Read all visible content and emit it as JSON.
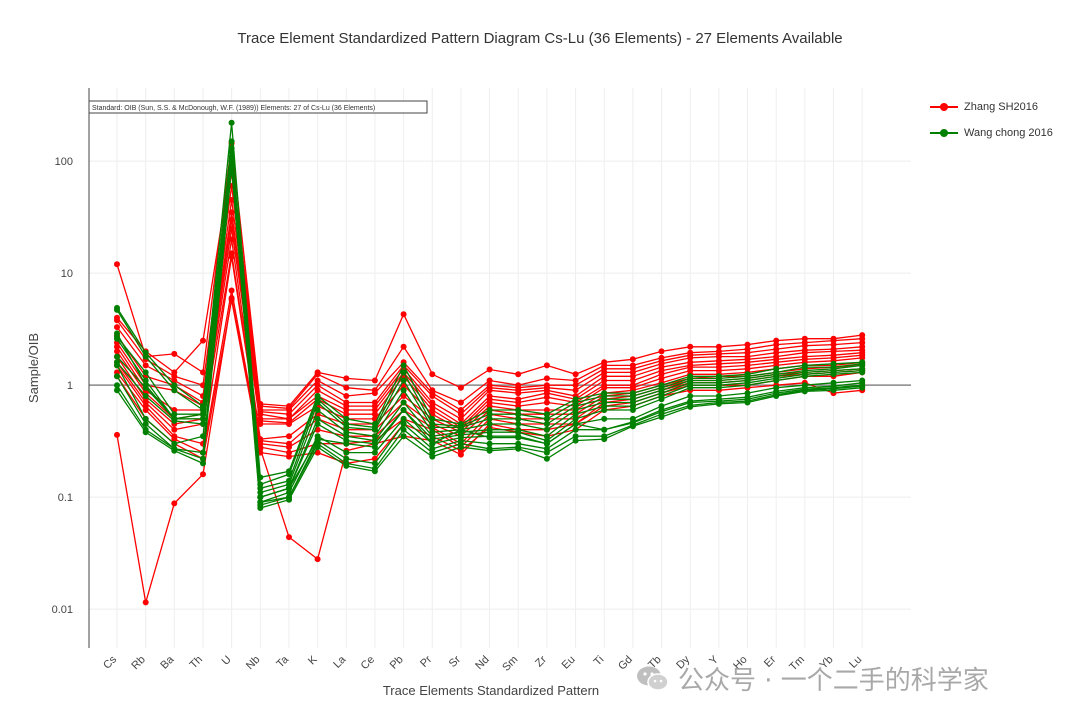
{
  "title": "Trace Element Standardized Pattern Diagram Cs-Lu (36 Elements) - 27 Elements Available",
  "watermark": "公众号 · 一个二手的科学家",
  "chart_data": {
    "type": "line",
    "title": "Trace Element Standardized Pattern Diagram Cs-Lu (36 Elements) - 27 Elements Available",
    "xlabel": "Trace Elements Standardized Pattern",
    "ylabel": "Sample/OIB",
    "yscale": "log",
    "ylim": [
      0.0045,
      450
    ],
    "yticks": [
      0.01,
      0.1,
      1,
      10,
      100
    ],
    "ytick_labels": [
      "0.01",
      "0.1",
      "1",
      "10",
      "100"
    ],
    "reference_line": 1,
    "grid": true,
    "legend_position": "top-right",
    "annotation": "Standard: OIB (Sun, S.S. & McDonough, W.F. (1989)) Elements: 27 of Cs-Lu (36 Elements)",
    "categories": [
      "Cs",
      "Rb",
      "Ba",
      "Th",
      "U",
      "Nb",
      "Ta",
      "K",
      "La",
      "Ce",
      "Pb",
      "Pr",
      "Sr",
      "Nd",
      "Sm",
      "Zr",
      "Eu",
      "Ti",
      "Gd",
      "Tb",
      "Dy",
      "Y",
      "Ho",
      "Er",
      "Tm",
      "Yb",
      "Lu"
    ],
    "groups": [
      {
        "name": "Zhang SH2016",
        "color": "#ff0000",
        "samples": [
          [
            12,
            1.8,
            1.9,
            1.3,
            145,
            0.68,
            0.65,
            1.3,
            1.15,
            1.1,
            4.3,
            1.25,
            0.95,
            1.38,
            1.25,
            1.5,
            1.25,
            1.6,
            1.7,
            2.0,
            2.2,
            2.2,
            2.3,
            2.5,
            2.6,
            2.6,
            2.8
          ],
          [
            4,
            2.0,
            1.3,
            2.5,
            100,
            0.65,
            0.62,
            1.25,
            0.95,
            0.9,
            2.2,
            0.9,
            0.7,
            1.1,
            1.0,
            1.15,
            1.1,
            1.5,
            1.5,
            1.75,
            1.95,
            2.0,
            2.1,
            2.3,
            2.4,
            2.5,
            2.6
          ],
          [
            3.8,
            1.7,
            1.2,
            1.0,
            80,
            0.6,
            0.6,
            1.1,
            0.8,
            0.85,
            1.6,
            0.85,
            0.6,
            1.0,
            0.95,
            1.0,
            1.0,
            1.4,
            1.4,
            1.65,
            1.85,
            1.9,
            1.95,
            2.1,
            2.25,
            2.3,
            2.4
          ],
          [
            3.3,
            1.5,
            1.1,
            0.8,
            60,
            0.58,
            0.55,
            1.0,
            0.7,
            0.7,
            1.5,
            0.8,
            0.55,
            0.95,
            0.9,
            0.95,
            0.9,
            1.3,
            1.3,
            1.55,
            1.75,
            1.8,
            1.8,
            1.95,
            2.05,
            2.1,
            2.2
          ],
          [
            2.8,
            1.2,
            1.0,
            0.7,
            45,
            0.55,
            0.5,
            0.9,
            0.65,
            0.65,
            1.4,
            0.7,
            0.5,
            0.9,
            0.85,
            0.9,
            0.8,
            1.2,
            1.2,
            1.45,
            1.6,
            1.65,
            1.7,
            1.8,
            1.95,
            2.0,
            2.05
          ],
          [
            2.4,
            1.0,
            0.9,
            0.65,
            35,
            0.5,
            0.5,
            0.8,
            0.6,
            0.6,
            1.3,
            0.65,
            0.45,
            0.8,
            0.75,
            0.85,
            0.75,
            1.1,
            1.1,
            1.35,
            1.5,
            1.55,
            1.6,
            1.7,
            1.8,
            1.85,
            1.95
          ],
          [
            2.2,
            0.9,
            0.6,
            0.6,
            30,
            0.48,
            0.46,
            0.75,
            0.55,
            0.55,
            1.2,
            0.6,
            0.42,
            0.75,
            0.7,
            0.78,
            0.7,
            1.0,
            1.0,
            1.25,
            1.45,
            1.45,
            1.5,
            1.6,
            1.7,
            1.75,
            1.85
          ],
          [
            2.0,
            0.85,
            0.5,
            0.55,
            25,
            0.45,
            0.45,
            0.65,
            0.5,
            0.5,
            1.0,
            0.55,
            0.4,
            0.7,
            0.65,
            0.7,
            0.65,
            0.95,
            0.95,
            1.15,
            1.35,
            1.35,
            1.4,
            1.5,
            1.6,
            1.65,
            1.75
          ],
          [
            1.8,
            0.75,
            0.45,
            0.5,
            20,
            0.33,
            0.35,
            0.55,
            0.45,
            0.45,
            0.8,
            0.5,
            0.38,
            0.65,
            0.6,
            0.6,
            0.6,
            0.85,
            0.9,
            1.05,
            1.25,
            1.25,
            1.3,
            1.4,
            1.5,
            1.5,
            1.6
          ],
          [
            1.6,
            0.7,
            0.4,
            0.45,
            15,
            0.32,
            0.3,
            0.5,
            0.4,
            0.4,
            0.7,
            0.45,
            0.35,
            0.6,
            0.55,
            0.55,
            0.55,
            0.8,
            0.85,
            1.0,
            1.15,
            1.2,
            1.2,
            1.3,
            1.4,
            1.45,
            1.5
          ],
          [
            1.5,
            0.65,
            0.35,
            0.3,
            14,
            0.3,
            0.28,
            0.4,
            0.35,
            0.35,
            0.6,
            0.42,
            0.3,
            0.55,
            0.5,
            0.5,
            0.5,
            0.75,
            0.8,
            0.95,
            1.1,
            1.1,
            1.15,
            1.25,
            1.3,
            1.35,
            1.4
          ],
          [
            1.3,
            0.6,
            0.33,
            0.25,
            7,
            0.28,
            0.25,
            0.3,
            0.3,
            0.32,
            0.5,
            0.4,
            0.28,
            0.5,
            0.45,
            0.45,
            0.45,
            0.7,
            0.75,
            0.9,
            1.05,
            1.05,
            1.1,
            1.2,
            1.25,
            1.3,
            1.35
          ],
          [
            0.36,
            0.0115,
            0.088,
            0.16,
            6,
            0.27,
            0.044,
            0.028,
            0.26,
            0.3,
            0.35,
            0.32,
            0.24,
            0.45,
            0.4,
            0.4,
            0.45,
            0.65,
            0.7,
            0.85,
            1.0,
            1.0,
            1.0,
            1.1,
            1.2,
            1.2,
            1.3
          ],
          [
            1.2,
            0.5,
            0.3,
            0.22,
            5.8,
            0.25,
            0.23,
            0.25,
            0.2,
            0.22,
            0.45,
            0.35,
            0.26,
            0.42,
            0.38,
            0.35,
            0.4,
            0.6,
            0.65,
            0.8,
            0.9,
            0.9,
            0.95,
            1.0,
            1.05,
            0.85,
            0.9
          ]
        ]
      },
      {
        "name": "Wang chong 2016",
        "color": "#008000",
        "samples": [
          [
            4.9,
            1.95,
            1.0,
            0.65,
            220,
            0.15,
            0.17,
            0.8,
            0.5,
            0.45,
            1.5,
            0.5,
            0.45,
            0.6,
            0.6,
            0.55,
            0.75,
            0.85,
            0.85,
            1.0,
            1.2,
            1.2,
            1.25,
            1.4,
            1.5,
            1.55,
            1.6
          ],
          [
            4.7,
            1.8,
            0.9,
            0.6,
            150,
            0.13,
            0.16,
            0.75,
            0.45,
            0.42,
            1.3,
            0.45,
            0.43,
            0.55,
            0.55,
            0.5,
            0.7,
            0.8,
            0.8,
            0.95,
            1.15,
            1.15,
            1.2,
            1.3,
            1.45,
            1.45,
            1.55
          ],
          [
            2.7,
            1.3,
            0.55,
            0.55,
            130,
            0.12,
            0.14,
            0.7,
            0.42,
            0.4,
            1.1,
            0.42,
            0.42,
            0.5,
            0.5,
            0.45,
            0.65,
            0.75,
            0.75,
            0.9,
            1.1,
            1.1,
            1.15,
            1.25,
            1.35,
            1.4,
            1.5
          ],
          [
            2.6,
            1.1,
            0.5,
            0.55,
            120,
            0.11,
            0.13,
            0.6,
            0.38,
            0.35,
            0.9,
            0.38,
            0.4,
            0.45,
            0.45,
            0.4,
            0.6,
            0.7,
            0.7,
            0.85,
            1.05,
            1.05,
            1.1,
            1.2,
            1.3,
            1.35,
            1.4
          ],
          [
            1.8,
            0.95,
            0.5,
            0.5,
            110,
            0.1,
            0.12,
            0.5,
            0.35,
            0.32,
            0.7,
            0.35,
            0.38,
            0.4,
            0.4,
            0.35,
            0.55,
            0.65,
            0.65,
            0.8,
            1.0,
            1.0,
            1.05,
            1.15,
            1.25,
            1.3,
            1.35
          ],
          [
            1.6,
            0.8,
            0.48,
            0.45,
            105,
            0.1,
            0.12,
            0.45,
            0.32,
            0.3,
            0.6,
            0.33,
            0.36,
            0.38,
            0.38,
            0.32,
            0.5,
            0.6,
            0.6,
            0.75,
            0.95,
            0.95,
            1.0,
            1.1,
            1.2,
            1.25,
            1.3
          ],
          [
            1.5,
            0.5,
            0.3,
            0.35,
            100,
            0.09,
            0.11,
            0.35,
            0.25,
            0.25,
            0.5,
            0.3,
            0.34,
            0.35,
            0.35,
            0.3,
            0.45,
            0.5,
            0.5,
            0.65,
            0.8,
            0.8,
            0.85,
            0.95,
            1.0,
            1.05,
            1.1
          ],
          [
            1.2,
            0.45,
            0.27,
            0.25,
            95,
            0.09,
            0.1,
            0.32,
            0.22,
            0.2,
            0.45,
            0.27,
            0.32,
            0.3,
            0.3,
            0.27,
            0.4,
            0.4,
            0.46,
            0.58,
            0.7,
            0.72,
            0.75,
            0.85,
            0.92,
            0.95,
            1.0
          ],
          [
            1.0,
            0.4,
            0.27,
            0.22,
            90,
            0.085,
            0.1,
            0.3,
            0.2,
            0.18,
            0.4,
            0.25,
            0.3,
            0.27,
            0.28,
            0.25,
            0.35,
            0.35,
            0.44,
            0.55,
            0.66,
            0.7,
            0.72,
            0.82,
            0.9,
            0.93,
            0.98
          ],
          [
            0.9,
            0.38,
            0.26,
            0.2,
            88,
            0.08,
            0.095,
            0.28,
            0.19,
            0.17,
            0.35,
            0.23,
            0.28,
            0.26,
            0.27,
            0.22,
            0.32,
            0.33,
            0.43,
            0.52,
            0.64,
            0.68,
            0.7,
            0.8,
            0.88,
            0.9,
            0.95
          ],
          [
            2.9,
            1.0,
            0.5,
            0.5,
            100,
            0.1,
            0.12,
            0.33,
            0.3,
            0.28,
            0.6,
            0.3,
            0.4,
            0.34,
            0.34,
            0.3,
            0.45,
            0.4,
            0.47,
            0.6,
            0.72,
            0.75,
            0.78,
            0.88,
            0.95,
            0.98,
            1.05
          ]
        ]
      }
    ]
  }
}
